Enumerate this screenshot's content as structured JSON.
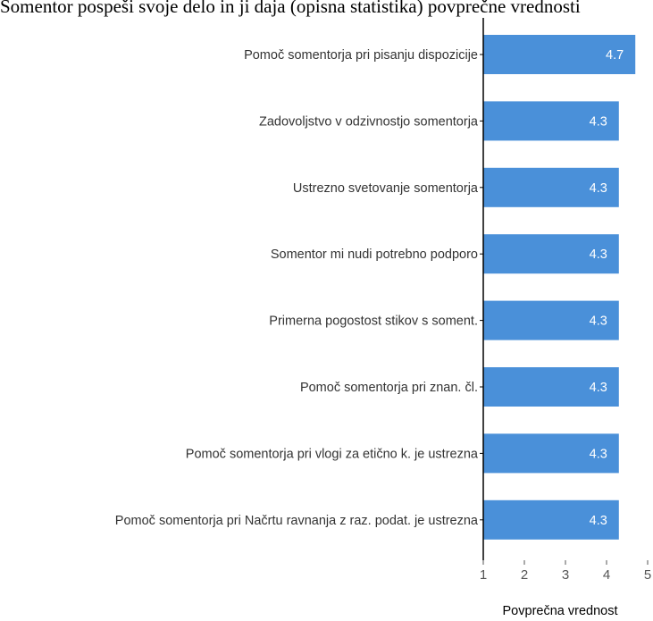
{
  "chart_data": {
    "type": "bar",
    "orientation": "horizontal",
    "title": "Somentor pospeši svoje delo in ji daja (opisna statistika) povprečne vrednosti",
    "categories": [
      "Pomoč somentorja pri pisanju dispozicije",
      "Zadovoljstvo v odzivnostjo somentorja",
      "Ustrezno svetovanje somentorja",
      "Somentor mi nudi potrebno podporo",
      "Primerna pogostost stikov s soment.",
      "Pomoč somentorja pri znan. čl.",
      "Pomoč somentorja pri vlogi za etično k. je ustrezna",
      "Pomoč somentorja pri Načrtu ravnanja z raz. podat. je ustrezna"
    ],
    "values": [
      4.7,
      4.3,
      4.3,
      4.3,
      4.3,
      4.3,
      4.3,
      4.3
    ],
    "value_labels": [
      "4.7",
      "4.3",
      "4.3",
      "4.3",
      "4.3",
      "4.3",
      "4.3",
      "4.3"
    ],
    "xlabel": "Povprečna vrednost",
    "ylabel": "",
    "xlim": [
      1,
      5
    ],
    "xticks": [
      "1",
      "2",
      "3",
      "4",
      "5"
    ],
    "bar_color": "#4a90d9",
    "grid": false
  }
}
